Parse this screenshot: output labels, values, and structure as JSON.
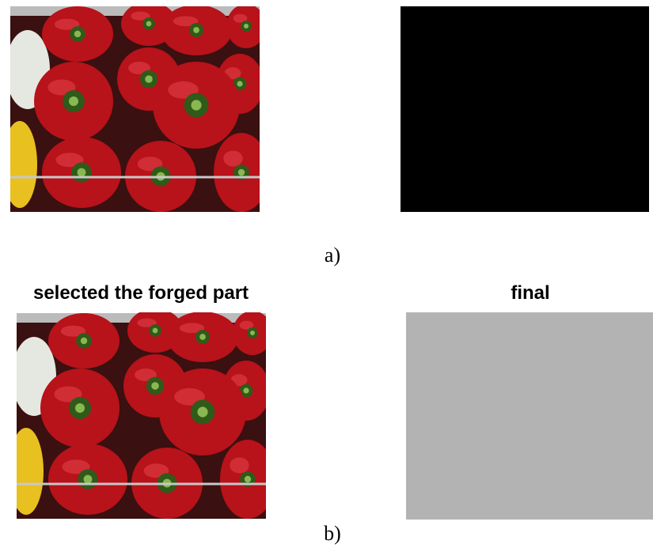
{
  "panel_a": {
    "caption": "a)"
  },
  "panel_b": {
    "left_title": "selected the forged part",
    "right_title": "final",
    "caption": "b)"
  }
}
